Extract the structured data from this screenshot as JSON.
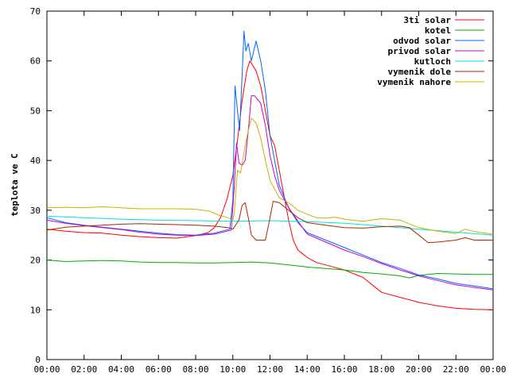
{
  "chart_data": {
    "type": "line",
    "title": "",
    "xlabel": "",
    "ylabel": "teplota ve C",
    "xlim": [
      "00:00",
      "24:00"
    ],
    "ylim": [
      0,
      70
    ],
    "x_ticks": [
      "00:00",
      "02:00",
      "04:00",
      "06:00",
      "08:00",
      "10:00",
      "12:00",
      "14:00",
      "16:00",
      "18:00",
      "20:00",
      "22:00",
      "00:00"
    ],
    "y_ticks": [
      0,
      10,
      20,
      30,
      40,
      50,
      60,
      70
    ],
    "grid": false,
    "legend_position": "top-right",
    "series": [
      {
        "name": "3ti solar",
        "color": "#ff0000",
        "points": [
          [
            "00:00",
            26.2
          ],
          [
            "01:00",
            25.8
          ],
          [
            "02:00",
            25.5
          ],
          [
            "03:00",
            25.4
          ],
          [
            "04:00",
            25.0
          ],
          [
            "05:00",
            24.7
          ],
          [
            "06:00",
            24.5
          ],
          [
            "07:00",
            24.4
          ],
          [
            "08:00",
            24.9
          ],
          [
            "08:40",
            25.5
          ],
          [
            "09:00",
            26.5
          ],
          [
            "09:20",
            28.5
          ],
          [
            "09:40",
            32.0
          ],
          [
            "10:00",
            37.0
          ],
          [
            "10:15",
            44.0
          ],
          [
            "10:30",
            52.0
          ],
          [
            "10:45",
            58.0
          ],
          [
            "10:55",
            60.0
          ],
          [
            "11:15",
            58.0
          ],
          [
            "11:30",
            55.0
          ],
          [
            "11:45",
            50.0
          ],
          [
            "12:00",
            45.0
          ],
          [
            "12:15",
            43.0
          ],
          [
            "12:30",
            38.0
          ],
          [
            "12:45",
            33.0
          ],
          [
            "13:00",
            28.0
          ],
          [
            "13:15",
            24.0
          ],
          [
            "13:30",
            22.0
          ],
          [
            "14:00",
            20.5
          ],
          [
            "14:30",
            19.5
          ],
          [
            "15:00",
            19.0
          ],
          [
            "16:00",
            18.0
          ],
          [
            "17:00",
            16.5
          ],
          [
            "18:00",
            13.5
          ],
          [
            "19:00",
            12.5
          ],
          [
            "20:00",
            11.5
          ],
          [
            "21:00",
            10.8
          ],
          [
            "22:00",
            10.3
          ],
          [
            "23:00",
            10.1
          ],
          [
            "24:00",
            10.0
          ]
        ]
      },
      {
        "name": "kotel",
        "color": "#00aa00",
        "points": [
          [
            "00:00",
            20.0
          ],
          [
            "01:00",
            19.7
          ],
          [
            "02:00",
            19.8
          ],
          [
            "03:00",
            19.9
          ],
          [
            "04:00",
            19.8
          ],
          [
            "05:00",
            19.6
          ],
          [
            "06:00",
            19.5
          ],
          [
            "07:00",
            19.5
          ],
          [
            "08:00",
            19.4
          ],
          [
            "09:00",
            19.4
          ],
          [
            "10:00",
            19.5
          ],
          [
            "11:00",
            19.6
          ],
          [
            "12:00",
            19.4
          ],
          [
            "13:00",
            19.0
          ],
          [
            "14:00",
            18.6
          ],
          [
            "15:00",
            18.3
          ],
          [
            "16:00",
            18.0
          ],
          [
            "17:00",
            17.5
          ],
          [
            "18:00",
            17.2
          ],
          [
            "19:00",
            16.8
          ],
          [
            "19:30",
            16.4
          ],
          [
            "20:00",
            16.9
          ],
          [
            "21:00",
            17.3
          ],
          [
            "22:00",
            17.2
          ],
          [
            "23:00",
            17.1
          ],
          [
            "24:00",
            17.1
          ]
        ]
      },
      {
        "name": "odvod solar",
        "color": "#0066ff",
        "points": [
          [
            "00:00",
            28.5
          ],
          [
            "01:00",
            27.5
          ],
          [
            "02:00",
            27.0
          ],
          [
            "03:00",
            26.6
          ],
          [
            "04:00",
            26.2
          ],
          [
            "05:00",
            25.8
          ],
          [
            "06:00",
            25.4
          ],
          [
            "07:00",
            25.1
          ],
          [
            "08:00",
            25.0
          ],
          [
            "09:00",
            25.4
          ],
          [
            "09:50",
            26.2
          ],
          [
            "10:00",
            32.0
          ],
          [
            "10:07",
            55.0
          ],
          [
            "10:15",
            50.0
          ],
          [
            "10:22",
            46.0
          ],
          [
            "10:30",
            57.0
          ],
          [
            "10:36",
            66.0
          ],
          [
            "10:42",
            62.0
          ],
          [
            "10:50",
            63.5
          ],
          [
            "11:00",
            60.0
          ],
          [
            "11:15",
            64.0
          ],
          [
            "11:30",
            60.0
          ],
          [
            "11:45",
            54.0
          ],
          [
            "12:00",
            45.0
          ],
          [
            "12:15",
            40.0
          ],
          [
            "12:30",
            35.0
          ],
          [
            "13:00",
            30.5
          ],
          [
            "13:30",
            27.5
          ],
          [
            "14:00",
            25.5
          ],
          [
            "15:00",
            24.0
          ],
          [
            "16:00",
            22.5
          ],
          [
            "17:00",
            21.0
          ],
          [
            "18:00",
            19.5
          ],
          [
            "19:00",
            18.3
          ],
          [
            "20:00",
            17.0
          ],
          [
            "21:00",
            16.2
          ],
          [
            "22:00",
            15.3
          ],
          [
            "23:00",
            14.8
          ],
          [
            "24:00",
            14.2
          ]
        ]
      },
      {
        "name": "privod solar",
        "color": "#cc00cc",
        "points": [
          [
            "00:00",
            28.0
          ],
          [
            "01:00",
            27.4
          ],
          [
            "02:00",
            26.9
          ],
          [
            "03:00",
            26.5
          ],
          [
            "04:00",
            26.1
          ],
          [
            "05:00",
            25.6
          ],
          [
            "06:00",
            25.2
          ],
          [
            "07:00",
            25.0
          ],
          [
            "08:00",
            24.9
          ],
          [
            "09:00",
            25.2
          ],
          [
            "09:55",
            26.0
          ],
          [
            "10:05",
            35.0
          ],
          [
            "10:12",
            43.5
          ],
          [
            "10:20",
            39.5
          ],
          [
            "10:30",
            39.0
          ],
          [
            "10:40",
            40.0
          ],
          [
            "10:50",
            46.0
          ],
          [
            "11:00",
            53.0
          ],
          [
            "11:10",
            53.0
          ],
          [
            "11:30",
            51.5
          ],
          [
            "11:45",
            47.0
          ],
          [
            "12:00",
            41.0
          ],
          [
            "12:15",
            37.0
          ],
          [
            "12:30",
            34.0
          ],
          [
            "13:00",
            30.5
          ],
          [
            "13:30",
            27.8
          ],
          [
            "14:00",
            25.2
          ],
          [
            "15:00",
            23.6
          ],
          [
            "16:00",
            22.0
          ],
          [
            "17:00",
            20.7
          ],
          [
            "18:00",
            19.3
          ],
          [
            "19:00",
            18.0
          ],
          [
            "20:00",
            16.8
          ],
          [
            "21:00",
            15.9
          ],
          [
            "22:00",
            15.0
          ],
          [
            "23:00",
            14.5
          ],
          [
            "24:00",
            14.0
          ]
        ]
      },
      {
        "name": "kutloch",
        "color": "#00e0e0",
        "points": [
          [
            "00:00",
            28.8
          ],
          [
            "02:00",
            28.5
          ],
          [
            "04:00",
            28.2
          ],
          [
            "06:00",
            28.0
          ],
          [
            "08:00",
            27.9
          ],
          [
            "10:00",
            27.8
          ],
          [
            "12:00",
            27.9
          ],
          [
            "14:00",
            27.7
          ],
          [
            "16:00",
            27.4
          ],
          [
            "18:00",
            26.8
          ],
          [
            "20:00",
            26.2
          ],
          [
            "22:00",
            25.6
          ],
          [
            "24:00",
            25.0
          ]
        ]
      },
      {
        "name": "vymenik dole",
        "color": "#a52a00",
        "points": [
          [
            "00:00",
            26.0
          ],
          [
            "01:00",
            26.6
          ],
          [
            "02:00",
            26.8
          ],
          [
            "03:00",
            27.0
          ],
          [
            "04:00",
            27.2
          ],
          [
            "05:00",
            27.3
          ],
          [
            "06:00",
            27.2
          ],
          [
            "07:00",
            27.1
          ],
          [
            "08:00",
            27.0
          ],
          [
            "09:00",
            26.8
          ],
          [
            "09:45",
            26.5
          ],
          [
            "10:00",
            26.2
          ],
          [
            "10:20",
            28.0
          ],
          [
            "10:30",
            31.0
          ],
          [
            "10:40",
            31.5
          ],
          [
            "10:50",
            28.5
          ],
          [
            "11:00",
            25.0
          ],
          [
            "11:15",
            24.0
          ],
          [
            "11:45",
            24.0
          ],
          [
            "12:00",
            28.5
          ],
          [
            "12:10",
            31.8
          ],
          [
            "12:30",
            31.5
          ],
          [
            "13:00",
            30.0
          ],
          [
            "13:30",
            28.5
          ],
          [
            "14:00",
            27.5
          ],
          [
            "15:00",
            27.0
          ],
          [
            "16:00",
            26.5
          ],
          [
            "17:00",
            26.4
          ],
          [
            "18:00",
            26.7
          ],
          [
            "19:00",
            26.8
          ],
          [
            "19:30",
            26.5
          ],
          [
            "20:00",
            25.0
          ],
          [
            "20:30",
            23.5
          ],
          [
            "21:00",
            23.6
          ],
          [
            "22:00",
            24.0
          ],
          [
            "22:30",
            24.5
          ],
          [
            "23:00",
            24.0
          ],
          [
            "24:00",
            24.0
          ]
        ]
      },
      {
        "name": "vymenik nahore",
        "color": "#c8b400",
        "points": [
          [
            "00:00",
            30.5
          ],
          [
            "01:00",
            30.6
          ],
          [
            "02:00",
            30.5
          ],
          [
            "03:00",
            30.7
          ],
          [
            "04:00",
            30.5
          ],
          [
            "05:00",
            30.3
          ],
          [
            "06:00",
            30.3
          ],
          [
            "07:00",
            30.3
          ],
          [
            "08:00",
            30.2
          ],
          [
            "08:45",
            29.8
          ],
          [
            "09:15",
            29.0
          ],
          [
            "09:45",
            28.5
          ],
          [
            "10:00",
            28.0
          ],
          [
            "10:05",
            29.5
          ],
          [
            "10:15",
            38.0
          ],
          [
            "10:25",
            37.5
          ],
          [
            "10:40",
            43.0
          ],
          [
            "10:50",
            46.0
          ],
          [
            "11:00",
            48.5
          ],
          [
            "11:15",
            47.5
          ],
          [
            "11:30",
            44.5
          ],
          [
            "11:45",
            40.0
          ],
          [
            "12:00",
            36.0
          ],
          [
            "12:30",
            32.5
          ],
          [
            "13:00",
            31.5
          ],
          [
            "13:30",
            30.0
          ],
          [
            "14:00",
            29.2
          ],
          [
            "14:30",
            28.5
          ],
          [
            "15:00",
            28.4
          ],
          [
            "15:30",
            28.6
          ],
          [
            "16:00",
            28.2
          ],
          [
            "17:00",
            27.8
          ],
          [
            "18:00",
            28.3
          ],
          [
            "19:00",
            28.0
          ],
          [
            "20:00",
            26.5
          ],
          [
            "21:00",
            25.8
          ],
          [
            "22:00",
            25.3
          ],
          [
            "22:30",
            26.2
          ],
          [
            "23:00",
            25.7
          ],
          [
            "24:00",
            25.2
          ]
        ]
      }
    ]
  }
}
